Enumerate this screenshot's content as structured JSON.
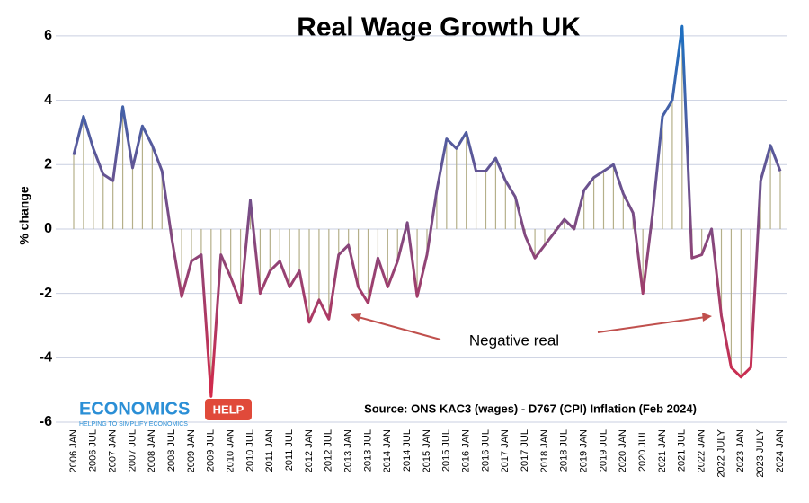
{
  "chart_data": {
    "type": "line",
    "title": "Real Wage Growth UK",
    "y_label": "% change",
    "annotation": "Negative real",
    "source": "Source: ONS KAC3 (wages) - D767 (CPI) Inflation (Feb 2024)",
    "logo": "ECONOMICS",
    "logo_badge": "HELP",
    "logo_tagline": "HELPING TO SIMPLIFY ECONOMICS",
    "categories": [
      "2006 JAN",
      null,
      "2006 JUL",
      null,
      "2007 JAN",
      null,
      "2007 JUL",
      null,
      "2008 JAN",
      null,
      "2008 JUL",
      null,
      "2009 JAN",
      null,
      "2009 JUL",
      null,
      "2010 JAN",
      null,
      "2010 JUL",
      null,
      "2011 JAN",
      null,
      "2011 JUL",
      null,
      "2012 JAN",
      null,
      "2012 JUL",
      null,
      "2013 JAN",
      null,
      "2013 JUL",
      null,
      "2014 JAN",
      null,
      "2014 JUL",
      null,
      "2015 JAN",
      null,
      "2015 JUL",
      null,
      "2016 JAN",
      null,
      "2016 JUL",
      null,
      "2017 JAN",
      null,
      "2017 JUL",
      null,
      "2018 JAN",
      null,
      "2018 JUL",
      null,
      "2019 JAN",
      null,
      "2019 JUL",
      null,
      "2020 JAN",
      null,
      "2020 JUL",
      null,
      "2021 JAN",
      null,
      "2021 JUL",
      null,
      "2022 JAN",
      null,
      "2022 JULY",
      null,
      "2023 JAN",
      null,
      "2023 JULY",
      null,
      "2024 JAN"
    ],
    "values": [
      2.3,
      3.5,
      2.5,
      1.7,
      1.5,
      3.8,
      1.9,
      3.2,
      2.6,
      1.8,
      -0.3,
      -2.1,
      -1.0,
      -0.8,
      -5.2,
      -0.8,
      -1.5,
      -2.3,
      0.9,
      -2.0,
      -1.3,
      -1.0,
      -1.8,
      -1.3,
      -2.9,
      -2.2,
      -2.8,
      -0.8,
      -0.5,
      -1.8,
      -2.3,
      -0.9,
      -1.8,
      -1.0,
      0.2,
      -2.1,
      -0.8,
      1.2,
      2.8,
      2.5,
      3.0,
      1.8,
      1.8,
      2.2,
      1.5,
      1.0,
      -0.2,
      -0.9,
      -0.5,
      -0.1,
      0.3,
      0.0,
      1.2,
      1.6,
      1.8,
      2.0,
      1.1,
      0.5,
      -2.0,
      0.5,
      3.5,
      4.0,
      6.3,
      -0.9,
      -0.8,
      0.0,
      -2.7,
      -4.3,
      -4.6,
      -4.3,
      1.5,
      2.6,
      1.8
    ],
    "ylim": [
      -6,
      6.5
    ],
    "yticks": [
      -6,
      -4,
      -2,
      0,
      2,
      4,
      6
    ],
    "grid": true,
    "stems": true,
    "color_top": "#1f6fc0",
    "color_bottom": "#d42a4a",
    "stem_color": "#b5b08a"
  }
}
